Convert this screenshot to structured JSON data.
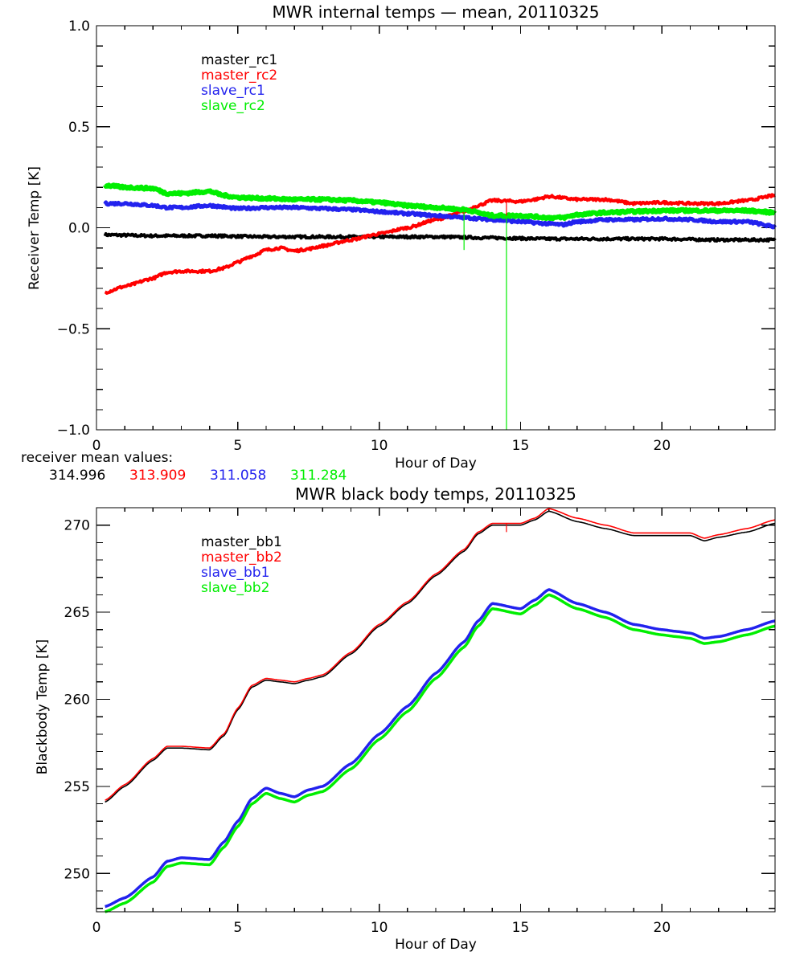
{
  "chart_data": [
    {
      "type": "line",
      "title": "MWR internal temps — mean, 20110325",
      "xlabel": "Hour of Day",
      "ylabel": "Receiver Temp [K]",
      "xlim": [
        0,
        24
      ],
      "ylim": [
        -1.0,
        1.0
      ],
      "xticks": [
        0,
        5,
        10,
        15,
        20
      ],
      "xtick_labels": [
        "0",
        "5",
        "10",
        "15",
        "20"
      ],
      "yticks": [
        -1.0,
        -0.5,
        0.0,
        0.5,
        1.0
      ],
      "ytick_labels": [
        "−1.0",
        "−0.5",
        "0.0",
        "0.5",
        "1.0"
      ],
      "x_minor_step": 1,
      "y_minor_step": 0.1,
      "grid": false,
      "legend_position": "top-left-inside",
      "noisy": true,
      "series": [
        {
          "name": "master_rc1",
          "color": "#000000",
          "x": [
            0.3,
            2,
            4,
            6,
            8,
            10,
            12,
            14,
            16,
            18,
            20,
            22,
            24
          ],
          "y": [
            -0.035,
            -0.04,
            -0.04,
            -0.045,
            -0.045,
            -0.045,
            -0.045,
            -0.05,
            -0.055,
            -0.055,
            -0.055,
            -0.06,
            -0.06
          ]
        },
        {
          "name": "master_rc2",
          "color": "#ff0000",
          "x": [
            0.3,
            1,
            2,
            2.5,
            3,
            4,
            4.5,
            5,
            5.5,
            6,
            6.5,
            7,
            7.5,
            8,
            9,
            10,
            11,
            12,
            13,
            13.5,
            14,
            15,
            15.5,
            16,
            17,
            18,
            19,
            20,
            21,
            22,
            23,
            24
          ],
          "y": [
            -0.32,
            -0.29,
            -0.25,
            -0.22,
            -0.215,
            -0.215,
            -0.2,
            -0.17,
            -0.14,
            -0.11,
            -0.1,
            -0.115,
            -0.105,
            -0.09,
            -0.06,
            -0.03,
            0.0,
            0.04,
            0.08,
            0.11,
            0.135,
            0.13,
            0.14,
            0.155,
            0.14,
            0.14,
            0.12,
            0.125,
            0.12,
            0.12,
            0.135,
            0.16
          ]
        },
        {
          "name": "slave_rc1",
          "color": "#2222ee",
          "x": [
            0.3,
            1,
            2,
            2.5,
            3,
            4,
            5,
            6,
            7,
            8,
            9,
            10,
            11,
            12,
            13,
            14,
            15,
            16,
            16.5,
            17,
            18,
            19,
            20,
            21,
            22,
            23,
            24
          ],
          "y": [
            0.12,
            0.12,
            0.11,
            0.1,
            0.1,
            0.11,
            0.095,
            0.1,
            0.1,
            0.095,
            0.09,
            0.08,
            0.07,
            0.06,
            0.05,
            0.04,
            0.03,
            0.02,
            0.015,
            0.03,
            0.04,
            0.04,
            0.045,
            0.04,
            0.03,
            0.03,
            0.005
          ]
        },
        {
          "name": "slave_rc2",
          "color": "#00ee00",
          "x": [
            0.3,
            1,
            2,
            2.5,
            3,
            4,
            4.5,
            5,
            6,
            7,
            8,
            9,
            10,
            11,
            12,
            13,
            14,
            15,
            16,
            16.5,
            17,
            18,
            19,
            20,
            21,
            22,
            23,
            24
          ],
          "y": [
            0.21,
            0.2,
            0.195,
            0.17,
            0.17,
            0.18,
            0.16,
            0.15,
            0.145,
            0.14,
            0.14,
            0.135,
            0.125,
            0.11,
            0.1,
            0.09,
            0.06,
            0.06,
            0.05,
            0.05,
            0.065,
            0.075,
            0.08,
            0.085,
            0.085,
            0.085,
            0.085,
            0.075
          ]
        }
      ],
      "spikes": [
        {
          "series": "slave_rc2",
          "x": 13.0,
          "from": 0.09,
          "to": -0.11
        },
        {
          "series": "slave_rc2",
          "x": 14.5,
          "from": 0.06,
          "to": -1.0
        },
        {
          "series": "master_rc2",
          "x": 14.5,
          "from": 0.13,
          "to": 0.06
        }
      ],
      "annotation": {
        "label": "receiver mean values:",
        "values": [
          {
            "series": "master_rc1",
            "value": "314.996",
            "color": "#000000"
          },
          {
            "series": "master_rc2",
            "value": "313.909",
            "color": "#ff0000"
          },
          {
            "series": "slave_rc1",
            "value": "311.058",
            "color": "#2222ee"
          },
          {
            "series": "slave_rc2",
            "value": "311.284",
            "color": "#00ee00"
          }
        ]
      }
    },
    {
      "type": "line",
      "title": "MWR black body temps, 20110325",
      "xlabel": "Hour of Day",
      "ylabel": "Blackbody Temp [K]",
      "xlim": [
        0,
        24
      ],
      "ylim": [
        247.8,
        271.0
      ],
      "xticks": [
        0,
        5,
        10,
        15,
        20
      ],
      "xtick_labels": [
        "0",
        "5",
        "10",
        "15",
        "20"
      ],
      "yticks": [
        250,
        255,
        260,
        265,
        270
      ],
      "ytick_labels": [
        "250",
        "255",
        "260",
        "265",
        "270"
      ],
      "x_minor_step": 1,
      "y_minor_step": 1,
      "grid": false,
      "legend_position": "top-left-inside",
      "noisy": false,
      "series": [
        {
          "name": "master_bb1",
          "color": "#000000",
          "x": [
            0.3,
            1,
            2,
            2.5,
            3,
            4,
            4.5,
            5,
            5.5,
            6,
            6.5,
            7,
            7.5,
            8,
            9,
            10,
            11,
            12,
            13,
            13.5,
            14,
            15,
            15.5,
            16,
            17,
            18,
            19,
            20,
            20.5,
            21,
            21.5,
            22,
            23,
            24
          ],
          "y": [
            254.1,
            255.0,
            256.5,
            257.2,
            257.2,
            257.1,
            257.9,
            259.4,
            260.7,
            261.1,
            261.0,
            260.9,
            261.1,
            261.3,
            262.6,
            264.2,
            265.5,
            267.1,
            268.5,
            269.5,
            270.0,
            270.0,
            270.3,
            270.8,
            270.2,
            269.8,
            269.4,
            269.4,
            269.4,
            269.4,
            269.1,
            269.3,
            269.6,
            270.1
          ]
        },
        {
          "name": "master_bb2",
          "color": "#ff0000",
          "x": [
            0.3,
            1,
            2,
            2.5,
            3,
            4,
            4.5,
            5,
            5.5,
            6,
            6.5,
            7,
            7.5,
            8,
            9,
            10,
            11,
            12,
            13,
            13.5,
            14,
            15,
            15.5,
            16,
            17,
            18,
            19,
            20,
            20.5,
            21,
            21.5,
            22,
            23,
            24
          ],
          "y": [
            254.2,
            255.1,
            256.6,
            257.3,
            257.3,
            257.2,
            258.0,
            259.5,
            260.8,
            261.2,
            261.1,
            261.0,
            261.2,
            261.4,
            262.7,
            264.3,
            265.6,
            267.2,
            268.6,
            269.6,
            270.1,
            270.1,
            270.4,
            270.95,
            270.4,
            270.0,
            269.55,
            269.55,
            269.55,
            269.55,
            269.25,
            269.45,
            269.8,
            270.3
          ]
        },
        {
          "name": "slave_bb1",
          "color": "#2222ee",
          "x": [
            0.3,
            1,
            2,
            2.5,
            3,
            4,
            4.5,
            5,
            5.5,
            6,
            6.5,
            7,
            7.5,
            8,
            9,
            10,
            11,
            12,
            13,
            13.5,
            14,
            15,
            15.5,
            16,
            17,
            18,
            19,
            20,
            20.5,
            21,
            21.5,
            22,
            23,
            24
          ],
          "y": [
            248.1,
            248.6,
            249.8,
            250.7,
            250.9,
            250.8,
            251.8,
            253.0,
            254.3,
            254.9,
            254.6,
            254.4,
            254.8,
            255.0,
            256.3,
            258.0,
            259.6,
            261.5,
            263.3,
            264.5,
            265.5,
            265.2,
            265.7,
            266.3,
            265.5,
            265.0,
            264.3,
            264.0,
            263.9,
            263.8,
            263.5,
            263.6,
            264.0,
            264.5
          ]
        },
        {
          "name": "slave_bb2",
          "color": "#00ee00",
          "x": [
            0.3,
            1,
            2,
            2.5,
            3,
            4,
            4.5,
            5,
            5.5,
            6,
            6.5,
            7,
            7.5,
            8,
            9,
            10,
            11,
            12,
            13,
            13.5,
            14,
            15,
            15.5,
            16,
            17,
            18,
            19,
            20,
            20.5,
            21,
            21.5,
            22,
            23,
            24
          ],
          "y": [
            247.8,
            248.3,
            249.5,
            250.4,
            250.6,
            250.5,
            251.5,
            252.7,
            254.0,
            254.6,
            254.3,
            254.1,
            254.5,
            254.7,
            256.0,
            257.7,
            259.3,
            261.2,
            263.0,
            264.2,
            265.2,
            264.9,
            265.4,
            266.0,
            265.2,
            264.7,
            264.0,
            263.7,
            263.6,
            263.5,
            263.2,
            263.3,
            263.7,
            264.2
          ]
        }
      ],
      "spikes": [
        {
          "series": "master_bb2",
          "x": 14.5,
          "from": 270.1,
          "to": 269.6
        }
      ]
    }
  ]
}
